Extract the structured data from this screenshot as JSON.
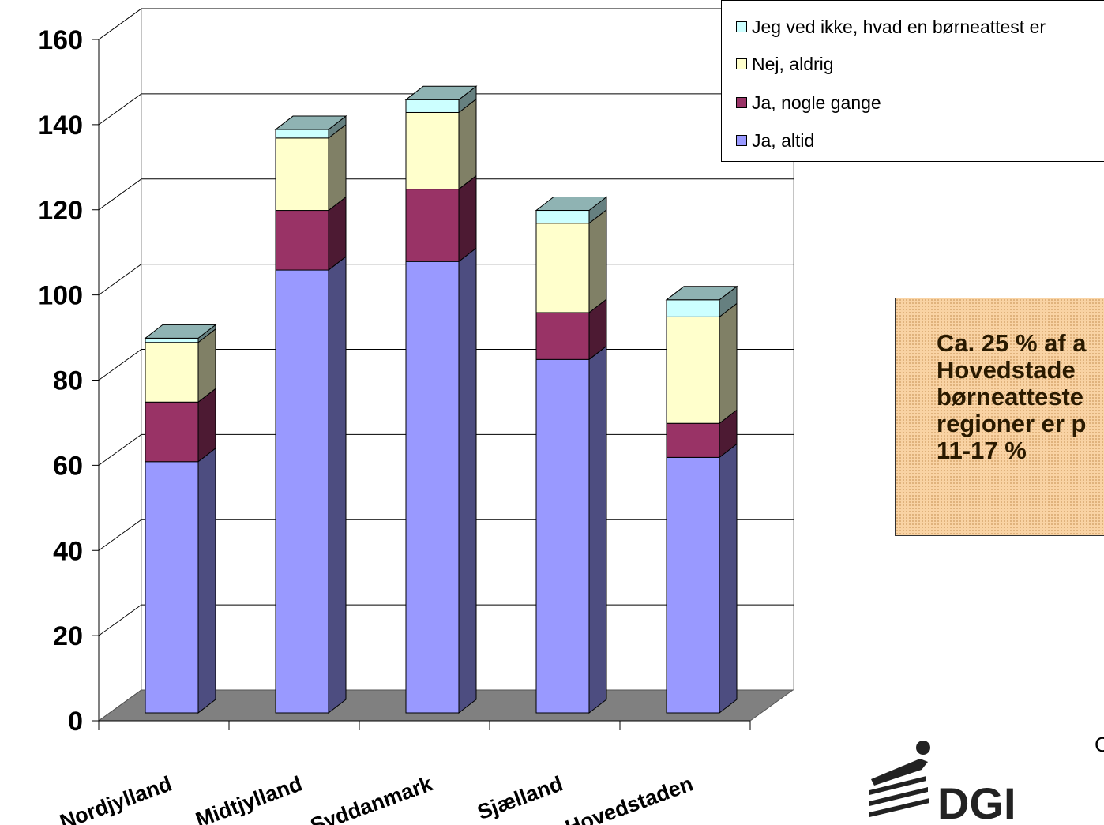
{
  "chart_data": {
    "type": "bar",
    "stacked": true,
    "three_d": true,
    "categories": [
      "Nordjylland",
      "Midtjylland",
      "Syddanmark",
      "Sjælland",
      "Hovedstaden"
    ],
    "series": [
      {
        "name": "Ja, altid",
        "color": "#9999ff",
        "values": [
          59,
          104,
          106,
          83,
          60
        ]
      },
      {
        "name": "Ja, nogle gange",
        "color": "#993366",
        "values": [
          14,
          14,
          17,
          11,
          8
        ]
      },
      {
        "name": "Nej, aldrig",
        "color": "#ffffcc",
        "values": [
          14,
          17,
          18,
          21,
          25
        ]
      },
      {
        "name": "Jeg ved ikke, hvad en børneattest er",
        "color": "#ccffff",
        "values": [
          1,
          2,
          3,
          3,
          4
        ]
      }
    ],
    "ylim": [
      0,
      160
    ],
    "yticks": [
      0,
      20,
      40,
      60,
      80,
      100,
      120,
      140,
      160
    ],
    "grid": true,
    "legend_position": "top-right"
  },
  "legend_order": [
    3,
    2,
    1,
    0
  ],
  "note_text": "Ca. 25 % af a\nHovedstade\nbørneatteste\nregioner er p\n11-17 %",
  "logo_text": "DGI",
  "edge_char": "C"
}
